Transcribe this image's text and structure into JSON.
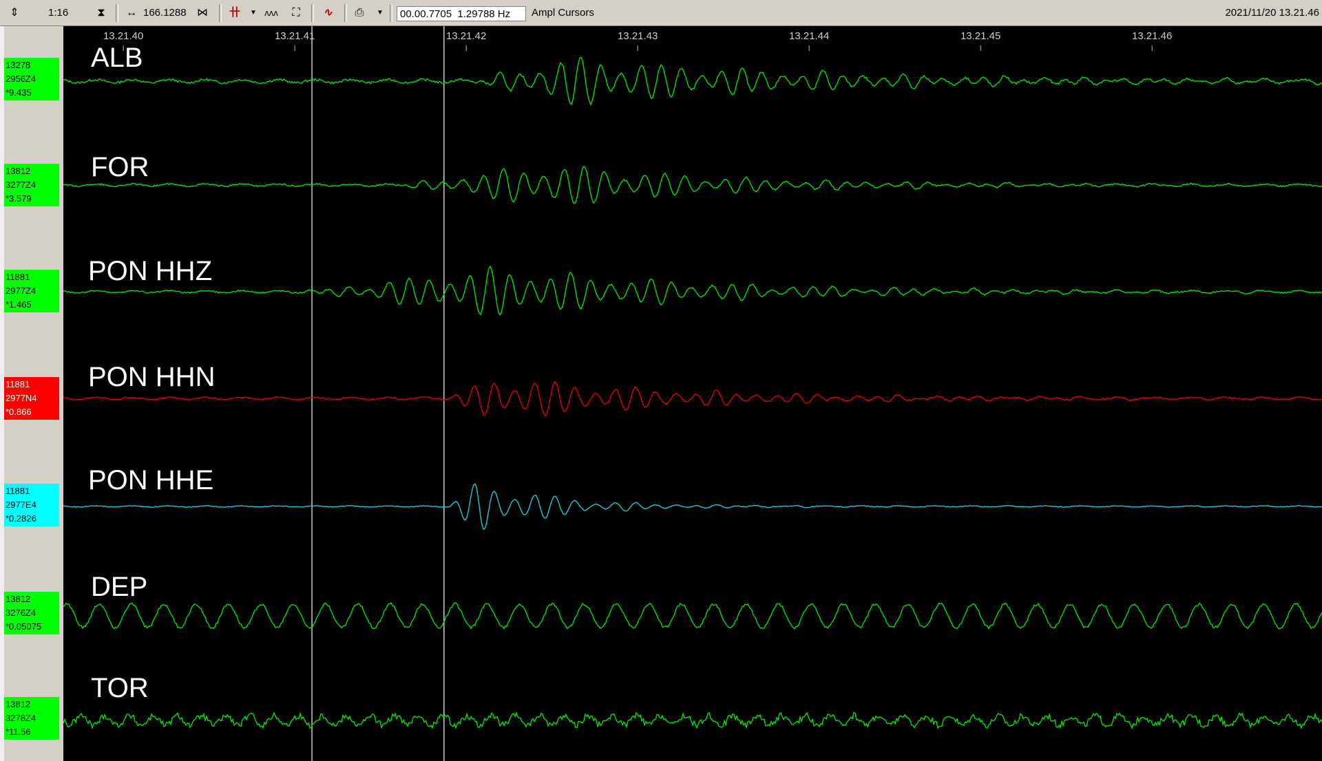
{
  "toolbar": {
    "speed": "1:16",
    "scale_value": "166.1288",
    "cursor_time": "00.00.7705",
    "cursor_freq": "1.29788 Hz",
    "mode": "Ampl Cursors",
    "datetime": "2021/11/20 13.21.46"
  },
  "time_axis": {
    "ticks": [
      "13.21.40",
      "13.21.41",
      "13.21.42",
      "13.21.43",
      "13.21.44",
      "13.21.45",
      "13.21.46"
    ]
  },
  "cursors": {
    "positions_seconds": [
      41.1,
      41.87
    ]
  },
  "channels": [
    {
      "station": "ALB",
      "line1": "13278",
      "line2": "2956Z4",
      "line3": "*9.435",
      "color": "#00ff00",
      "label_bg": "#00ff00",
      "trace_color": "#00e000",
      "burst_start": 42.05,
      "burst_peak": 42.6,
      "amp": 1.0,
      "noise": 0.12,
      "decay": 1.4
    },
    {
      "station": "FOR",
      "line1": "13812",
      "line2": "3277Z4",
      "line3": "*3.579",
      "color": "#00ff00",
      "label_bg": "#00ff00",
      "trace_color": "#00e000",
      "burst_start": 41.6,
      "burst_peak": 42.5,
      "amp": 0.9,
      "noise": 0.08,
      "decay": 1.0
    },
    {
      "station": "PON HHZ",
      "line1": "11881",
      "line2": "2977Z4",
      "line3": "*1.465",
      "color": "#00ff00",
      "label_bg": "#00ff00",
      "trace_color": "#00e000",
      "burst_start": 41.05,
      "burst_peak": 42.2,
      "amp": 1.0,
      "noise": 0.08,
      "decay": 1.2
    },
    {
      "station": "PON HHN",
      "line1": "11881",
      "line2": "2977N4",
      "line3": "*0.866",
      "color": "#ff0000",
      "label_bg": "#ff0000",
      "trace_color": "#e00000",
      "burst_start": 41.9,
      "burst_peak": 42.15,
      "amp": 0.9,
      "noise": 0.08,
      "decay": 1.1
    },
    {
      "station": "PON HHE",
      "line1": "11881",
      "line2": "2977E4",
      "line3": "*0.2826",
      "color": "#00ffff",
      "label_bg": "#00ffff",
      "trace_color": "#20c8d8",
      "burst_start": 41.9,
      "burst_peak": 42.08,
      "amp": 1.1,
      "noise": 0.04,
      "decay": 0.45
    },
    {
      "station": "DEP",
      "line1": "13812",
      "line2": "3276Z4",
      "line3": "*0.05075",
      "color": "#00ff00",
      "label_bg": "#00ff00",
      "trace_color": "#00e000",
      "burst_start": 99,
      "burst_peak": 99,
      "amp": 0,
      "noise": 0.45,
      "decay": 1
    },
    {
      "station": "TOR",
      "line1": "13812",
      "line2": "3278Z4",
      "line3": "*11.56",
      "color": "#00ff00",
      "label_bg": "#00ff00",
      "trace_color": "#00e000",
      "burst_start": 99,
      "burst_peak": 99,
      "amp": 0,
      "noise": 0.3,
      "decay": 1
    }
  ],
  "icons": [
    "updown-arrows-icon",
    "hourglass-icon",
    "expand-horizontal-icon",
    "contract-horizontal-icon",
    "filter-icon",
    "dropdown-arrow-icon",
    "zigzag-icon",
    "fit-icon",
    "wave-icon",
    "printer-icon"
  ]
}
